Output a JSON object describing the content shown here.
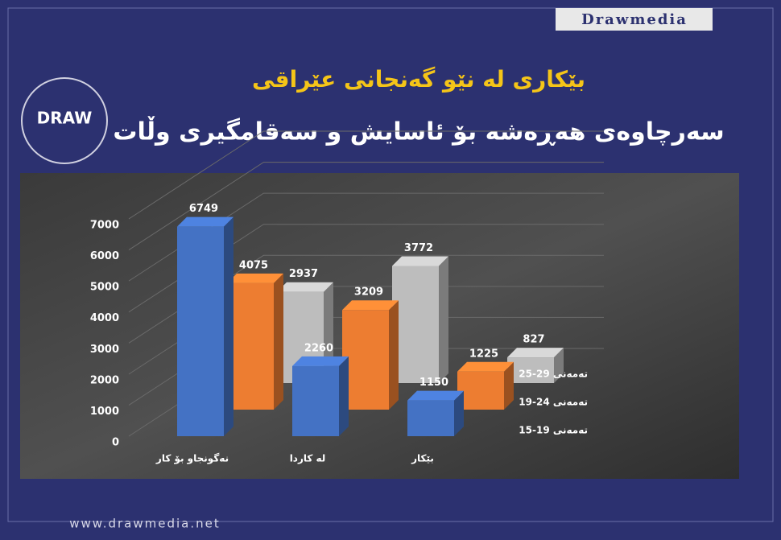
{
  "header": {
    "brand": "Drawmedia",
    "logo": "DRAW",
    "title": "بێکاری لە نێو گەنجانی عێراقی",
    "subtitle": "سەرچاوەی هەڕەشە بۆ ئاسایش و سەقامگیری وڵات"
  },
  "chart_data": {
    "type": "bar3d",
    "categories": [
      "نەگونجاو بۆ کار",
      "لە کاردا",
      "بێکار"
    ],
    "series": [
      {
        "name": "تەمەنی 19-15",
        "color": "#4472c4",
        "values": [
          6749,
          2260,
          1150
        ]
      },
      {
        "name": "تەمەنی 24-19",
        "color": "#ed7d31",
        "values": [
          4075,
          3209,
          1225
        ]
      },
      {
        "name": "تەمەنی 29-25",
        "color": "#bdbdbd",
        "values": [
          2937,
          3772,
          827
        ]
      }
    ],
    "ylim": [
      0,
      7000
    ],
    "yticks": [
      0,
      1000,
      2000,
      3000,
      4000,
      5000,
      6000,
      7000
    ],
    "grid": true
  },
  "footer": {
    "url": "www.drawmedia.net"
  }
}
